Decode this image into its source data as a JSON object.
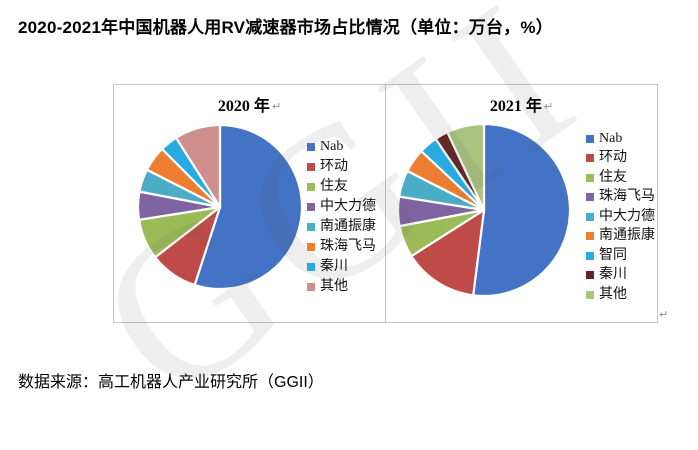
{
  "page": {
    "title": "2020-2021年中国机器人用RV减速器市场占比情况（单位：万台，%）",
    "source": "数据来源：高工机器人产业研究所（GGII）",
    "watermark": "GGII",
    "return_mark": "↵"
  },
  "chart_data": [
    {
      "type": "pie",
      "title": "2020 年",
      "categories": [
        "Nab",
        "环动",
        "住友",
        "中大力德",
        "南通振康",
        "珠海飞马",
        "秦川",
        "其他"
      ],
      "values": [
        55,
        9.5,
        8,
        5.5,
        4.5,
        5,
        3.5,
        9
      ],
      "values_unit": "%",
      "colors": [
        "#4472C4",
        "#BE4B48",
        "#9BBB59",
        "#8064A2",
        "#4BACC6",
        "#ED7D31",
        "#29ABE2",
        "#CE8E8C"
      ],
      "start_angle_deg": 0,
      "direction": "clockwise",
      "legend_position": "right",
      "slice_border_color": "#ffffff"
    },
    {
      "type": "pie",
      "title": "2021 年",
      "categories": [
        "Nab",
        "环动",
        "住友",
        "珠海飞马",
        "中大力德",
        "南通振康",
        "智同",
        "秦川",
        "其他"
      ],
      "values": [
        52,
        14,
        6,
        5.5,
        5,
        4.5,
        3.5,
        2.5,
        7
      ],
      "values_unit": "%",
      "colors": [
        "#4472C4",
        "#BE4B48",
        "#9BBB59",
        "#8064A2",
        "#4BACC6",
        "#ED7D31",
        "#29ABE2",
        "#632423",
        "#A9C47F"
      ],
      "start_angle_deg": 0,
      "direction": "clockwise",
      "legend_position": "right",
      "slice_border_color": "#ffffff"
    }
  ]
}
